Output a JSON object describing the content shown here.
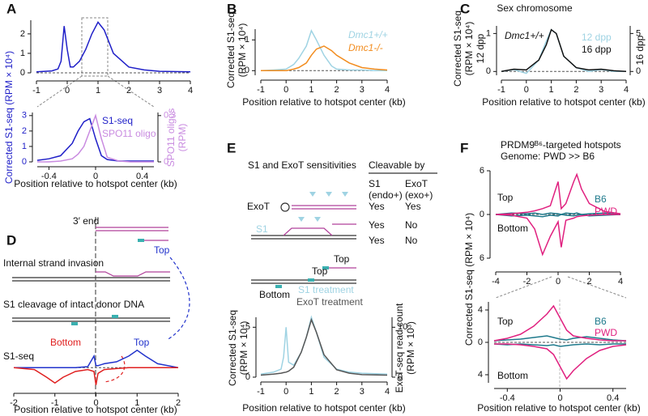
{
  "chart_data": [
    {
      "type": "line",
      "panel": "A",
      "xlim": [
        -1,
        4
      ],
      "ylim": [
        0,
        2.7
      ],
      "xticks": [
        -1,
        0,
        1,
        2,
        3,
        4
      ],
      "yticks": [
        0,
        1,
        2
      ],
      "zero_line": true,
      "x": [
        -1,
        -0.5,
        -0.3,
        -0.2,
        -0.1,
        0,
        0.1,
        0.2,
        0.4,
        0.6,
        0.8,
        1,
        1.2,
        1.5,
        2,
        2.5,
        3,
        4
      ],
      "series": [
        {
          "color": "#1f1fc8",
          "values": [
            0.05,
            0.1,
            0.2,
            0.6,
            2.4,
            1.2,
            0.3,
            0.3,
            0.6,
            1.2,
            2.0,
            2.6,
            2.2,
            1.0,
            0.3,
            0.15,
            0.08,
            0.05
          ]
        }
      ]
    },
    {
      "type": "line",
      "xlim": [
        -0.5,
        0.5
      ],
      "ylim": [
        0,
        3.2
      ],
      "y2lim": [
        0,
        0.32
      ],
      "xticks": [
        -0.4,
        0,
        0.4
      ],
      "yticks": [
        0,
        1,
        2,
        3
      ],
      "y2ticks": [
        0,
        0.3
      ],
      "y_color": "#1f1fc8",
      "y2_color": "#c98be0",
      "xlabel": "Position relative to hotspot center (kb)",
      "ylabel": [
        "Corrected S1-seq (RPM × 10⁴)"
      ],
      "y2label": [
        "SPO11 oligos",
        "(RPM)"
      ],
      "x": [
        -0.5,
        -0.4,
        -0.3,
        -0.2,
        -0.15,
        -0.1,
        -0.05,
        0,
        0.05,
        0.1,
        0.2,
        0.3,
        0.4,
        0.5
      ],
      "series": [
        {
          "name": "S1-seq",
          "color": "#1f1fc8",
          "values": [
            0.1,
            0.2,
            0.4,
            1.2,
            2.0,
            2.6,
            2.8,
            1.5,
            0.4,
            0.15,
            0.05,
            0.05,
            0.05,
            0.05
          ]
        },
        {
          "name": "SPO11 oligo",
          "color": "#c98be0",
          "axis": "y2",
          "values": [
            0,
            0,
            0.005,
            0.02,
            0.05,
            0.1,
            0.2,
            0.3,
            0.15,
            0.03,
            0.005,
            0,
            0,
            0
          ]
        }
      ]
    },
    {
      "type": "line",
      "panel": "B",
      "xlim": [
        -1,
        4
      ],
      "ylim": [
        -0.15,
        1.35
      ],
      "xticks": [
        -1,
        0,
        1,
        2,
        3,
        4
      ],
      "yticks": [
        0,
        1
      ],
      "zero_line": true,
      "xlabel": "Position relative to hotspot center (kb)",
      "ylabel": [
        "Corrected S1-seq",
        "(RPM × 10⁴)"
      ],
      "x": [
        -1,
        -0.5,
        0,
        0.3,
        0.5,
        0.8,
        1,
        1.2,
        1.5,
        1.8,
        2,
        2.5,
        3,
        3.5,
        4
      ],
      "series": [
        {
          "name": "Dmc1+/+",
          "color": "#9fd3e3",
          "values": [
            0,
            0.02,
            0.05,
            0.2,
            0.4,
            0.8,
            1.3,
            1.0,
            0.5,
            0.15,
            0.05,
            0.02,
            0.02,
            0,
            0
          ]
        },
        {
          "name": "Dmc1-/-",
          "color": "#f28c1e",
          "values": [
            0,
            0,
            0,
            0.05,
            0.1,
            0.25,
            0.5,
            0.7,
            0.8,
            0.65,
            0.5,
            0.25,
            0.1,
            0.05,
            0.02
          ]
        }
      ]
    },
    {
      "type": "line",
      "panel": "C",
      "title": "Sex chromosome",
      "annotations": [
        "Dmc1+/+"
      ],
      "xlim": [
        -1,
        4
      ],
      "ylim": [
        -0.1,
        1.2
      ],
      "y2lim": [
        -0.5,
        6
      ],
      "xticks": [
        -1,
        0,
        1,
        2,
        3,
        4
      ],
      "yticks": [
        0,
        1
      ],
      "y2ticks": [
        0,
        5
      ],
      "zero_line": true,
      "xlabel": "Position relative to hotspot center (kb)",
      "ylabel": [
        "Corrected S1-seq",
        "(RPM × 10⁴)",
        "12 dpp"
      ],
      "y2label": [
        "16 dpp"
      ],
      "x": [
        -1,
        -0.5,
        0,
        0.5,
        0.8,
        1,
        1.2,
        1.5,
        2,
        2.5,
        3,
        3.5,
        4
      ],
      "series": [
        {
          "name": "12 dpp",
          "color": "#9fd3e3",
          "values": [
            0,
            0.05,
            -0.05,
            0.3,
            0.8,
            1.1,
            1.0,
            0.4,
            0.1,
            0,
            0.05,
            0,
            0
          ]
        },
        {
          "name": "16 dpp",
          "color": "#111111",
          "axis": "y2",
          "values": [
            0,
            0.3,
            0.2,
            1.5,
            3.5,
            5.5,
            5,
            2,
            0.5,
            0.2,
            0.3,
            0.1,
            0
          ]
        }
      ]
    },
    {
      "type": "line",
      "panel": "D",
      "annotations": [
        "S1-seq"
      ],
      "xlim": [
        -2,
        2
      ],
      "ylim": [
        -1,
        1.1
      ],
      "xticks": [
        -2,
        -1,
        0,
        1,
        2
      ],
      "zero_line": true,
      "xlabel": "Position relative to hotspot center (kb)",
      "x": [
        -2,
        -1.5,
        -1.2,
        -1,
        -0.8,
        -0.5,
        -0.2,
        -0.05,
        0,
        0.05,
        0.2,
        0.5,
        0.8,
        1,
        1.2,
        1.5,
        2
      ],
      "series": [
        {
          "color": "#2233cc",
          "values": [
            0,
            0,
            0,
            0,
            0,
            0,
            0.05,
            0.6,
            0.1,
            0.1,
            0.2,
            0.3,
            0.6,
            0.9,
            0.6,
            0.2,
            0
          ]
        },
        {
          "color": "#e02020",
          "values": [
            0,
            -0.1,
            -0.5,
            -0.8,
            -0.5,
            -0.2,
            -0.1,
            -0.2,
            -0.9,
            -0.3,
            -0.1,
            -0.05,
            0,
            0,
            0,
            0,
            0
          ]
        }
      ]
    },
    {
      "type": "line",
      "panel": "E",
      "xlim": [
        -1,
        4
      ],
      "ylim": [
        0,
        6
      ],
      "y2lim": [
        0,
        12
      ],
      "xticks": [
        -1,
        0,
        1,
        2,
        3,
        4
      ],
      "yticks": [
        0,
        5
      ],
      "y2ticks": [
        0,
        10
      ],
      "xlabel": "Position relative to hotspot center (kb)",
      "ylabel": [
        "Corrected S1-seq",
        "(RPM × 10⁴)"
      ],
      "y2label": [
        "ExoT-seq read count",
        "(RPM × 10³)"
      ],
      "x": [
        -1,
        -0.5,
        -0.2,
        -0.1,
        0,
        0.1,
        0.3,
        0.6,
        0.8,
        1,
        1.2,
        1.5,
        2,
        2.5,
        3,
        4
      ],
      "series": [
        {
          "name": "S1 treatment",
          "color": "#9fd3e3",
          "values": [
            0.3,
            0.5,
            0.8,
            2,
            5,
            1.5,
            1.2,
            2.5,
            4,
            6,
            4.5,
            2,
            0.8,
            0.5,
            0.4,
            0.3
          ]
        },
        {
          "name": "ExoT treatment",
          "color": "#555555",
          "axis": "y2",
          "values": [
            0.4,
            0.6,
            0.8,
            0.9,
            1,
            1.2,
            2,
            5,
            8,
            11.5,
            9,
            4.5,
            1.5,
            0.8,
            0.5,
            0.4
          ]
        }
      ]
    },
    {
      "type": "line",
      "panel": "F",
      "title": [
        "PRDM9ᴮ⁶-targeted hotspots",
        "Genome: PWD >> B6"
      ],
      "annotations": [
        "Top",
        "Bottom"
      ],
      "xlim": [
        -4,
        4
      ],
      "ylim": [
        -6,
        6
      ],
      "xticks": [
        -4,
        -2,
        0,
        2,
        4
      ],
      "yticks": [
        {
          "value": -6,
          "label": "6"
        },
        0,
        6
      ],
      "zero_line": true,
      "ylabel": [
        "Corrected S1-seq (RPM × 10⁴)"
      ],
      "x": [
        -4,
        -3,
        -2,
        -1.5,
        -1,
        -0.5,
        0,
        0.2,
        0.5,
        1,
        1.2,
        1.5,
        2,
        3,
        4
      ],
      "series": [
        {
          "name": "B6",
          "color": "#1f7a8c",
          "values": [
            0,
            0.2,
            0.1,
            0.2,
            0,
            0.2,
            0.1,
            0,
            0.2,
            0.1,
            0.2,
            0,
            0.1,
            0.2,
            0
          ]
        },
        {
          "name": "PWD",
          "color": "#e0207f",
          "values": [
            0,
            0.1,
            0.3,
            0.5,
            0.8,
            1.2,
            4.5,
            0.8,
            1.5,
            4.5,
            5.5,
            3.5,
            1.5,
            0.4,
            0.1
          ]
        },
        {
          "color": "#1f7a8c",
          "values": [
            0,
            -0.2,
            -0.1,
            -0.2,
            -0.3,
            -0.1,
            -0.2,
            0,
            -0.1,
            -0.2,
            -0.1,
            0,
            -0.2,
            -0.1,
            0
          ]
        },
        {
          "color": "#e0207f",
          "values": [
            0,
            -0.1,
            -0.5,
            -2,
            -5.5,
            -3,
            -1,
            -4.5,
            -0.8,
            -0.5,
            -0.3,
            -0.2,
            -0.1,
            0,
            0
          ]
        }
      ]
    },
    {
      "type": "line",
      "annotations": [
        "Top",
        "Bottom"
      ],
      "xlim": [
        -0.5,
        0.5
      ],
      "ylim": [
        -5,
        5
      ],
      "xticks": [
        -0.4,
        0,
        0.4
      ],
      "yticks": [
        {
          "value": -4,
          "label": "4"
        },
        0,
        4
      ],
      "zero_line": true,
      "xlabel": "Position relative to hotspot center (kb)",
      "x": [
        -0.5,
        -0.4,
        -0.3,
        -0.2,
        -0.1,
        -0.05,
        0,
        0.05,
        0.1,
        0.2,
        0.3,
        0.4,
        0.5
      ],
      "series": [
        {
          "name": "B6",
          "color": "#1f7a8c",
          "values": [
            0.2,
            0.3,
            0.4,
            0.6,
            0.8,
            0.6,
            0.4,
            0.3,
            0.5,
            0.7,
            0.5,
            0.3,
            0.2
          ]
        },
        {
          "name": "PWD",
          "color": "#e0207f",
          "values": [
            0.2,
            0.5,
            1,
            2,
            3.5,
            4.5,
            3,
            1.5,
            0.8,
            0.5,
            0.3,
            0.2,
            0.2
          ]
        },
        {
          "color": "#1f7a8c",
          "values": [
            -0.2,
            -0.3,
            -0.2,
            -0.3,
            -0.4,
            -0.3,
            -0.5,
            -0.4,
            -0.3,
            -0.2,
            -0.3,
            -0.2,
            -0.2
          ]
        },
        {
          "color": "#e0207f",
          "values": [
            -0.2,
            -0.2,
            -0.3,
            -0.5,
            -0.8,
            -1.5,
            -3,
            -4.5,
            -3.5,
            -2,
            -1,
            -0.5,
            -0.3
          ]
        }
      ]
    }
  ],
  "diagrams": {
    "D": {
      "steps": [
        "3′ end",
        "Internal strand invasion",
        "S1 cleavage of intact donor DNA"
      ],
      "strand_labels": [
        "Top",
        "Bottom",
        "Top"
      ]
    },
    "E": {
      "title": "S1 and ExoT sensitivities",
      "column_header": "Cleavable by",
      "columns": [
        [
          "S1",
          "(endo+)"
        ],
        [
          "ExoT",
          "(exo+)"
        ]
      ],
      "rows": [
        {
          "label": "ExoT",
          "cells": [
            "Yes",
            "Yes"
          ]
        },
        {
          "label": "S1",
          "cells": [
            "Yes",
            "No"
          ]
        },
        {
          "cells": [
            "Yes",
            "No"
          ]
        }
      ],
      "strand_labels": [
        "Top",
        "Top",
        "Bottom"
      ]
    }
  }
}
